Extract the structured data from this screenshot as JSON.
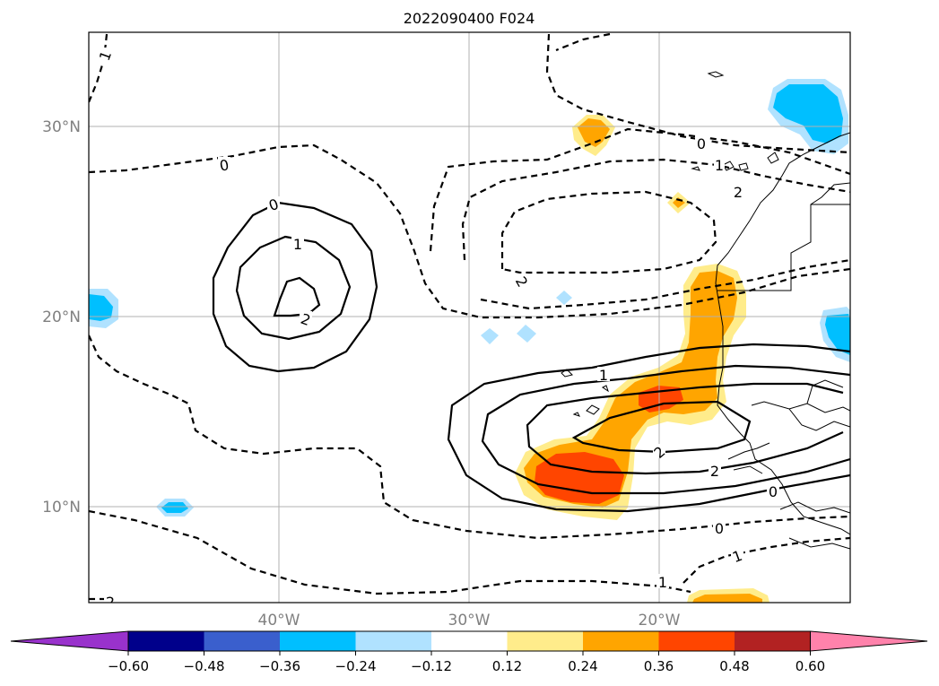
{
  "title": "2022090400 F024",
  "lat_labels": [
    "30°N",
    "20°N",
    "10°N"
  ],
  "lon_labels": [
    "40°W",
    "30°W",
    "20°W"
  ],
  "contour_labels": {
    "zero": "0",
    "one": "1",
    "two": "2",
    "neg_one": "-1",
    "neg_two": "-2"
  },
  "colorbar": {
    "colors": [
      "#9932cc",
      "#00008b",
      "#3a5fcd",
      "#00bfff",
      "#b0e2ff",
      "#ffffff",
      "#ffec8b",
      "#ffa500",
      "#ff4500",
      "#b22222",
      "#ff82ab"
    ],
    "tick_labels": [
      "−0.60",
      "−0.48",
      "−0.36",
      "−0.24",
      "−0.12",
      "0.12",
      "0.24",
      "0.36",
      "0.48",
      "0.60"
    ]
  }
}
